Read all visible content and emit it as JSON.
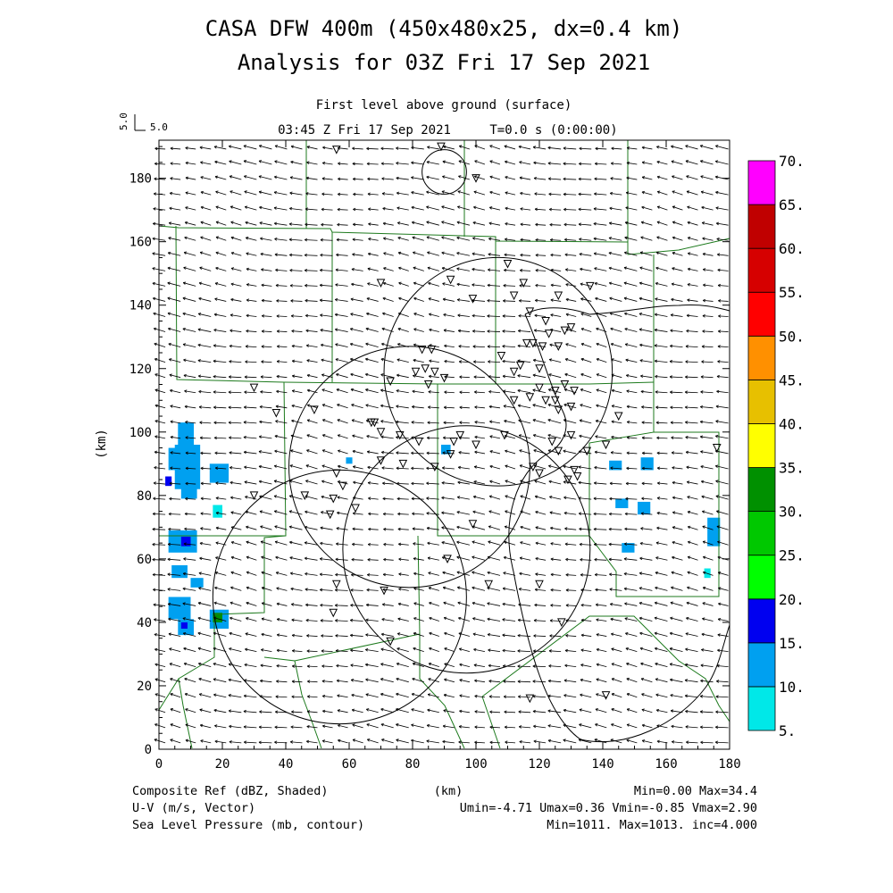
{
  "header": {
    "title_line1": "CASA DFW 400m (450x480x25, dx=0.4 km)",
    "title_line2": "Analysis for 03Z Fri 17 Sep 2021",
    "level": "First level above ground (surface)",
    "time": "03:45 Z Fri 17 Sep 2021",
    "elapsed": "T=0.0 s (0:00:00)",
    "ref_vector_left": "5.0",
    "ref_vector_right": "5.0"
  },
  "footer": {
    "line1_left": "Composite Ref (dBZ, Shaded)",
    "line1_center": "(km)",
    "line1_right": "Min=0.00 Max=34.4",
    "line2_left": "U-V (m/s, Vector)",
    "line2_right": "Umin=-4.71 Umax=0.36 Vmin=-0.85 Vmax=2.90",
    "line3_left": "Sea Level Pressure (mb, contour)",
    "line3_right": "Min=1011. Max=1013. inc=4.000"
  },
  "chart_data": {
    "type": "heatmap",
    "title": "CASA DFW 400m (450x480x25, dx=0.4 km)",
    "subtitle": "Analysis for 03Z Fri 17 Sep 2021",
    "xlabel": "(km)",
    "ylabel": "(km)",
    "xlim": [
      0,
      180
    ],
    "ylim": [
      0,
      192
    ],
    "x_ticks": [
      0,
      20,
      40,
      60,
      80,
      100,
      120,
      140,
      160,
      180
    ],
    "y_ticks": [
      0,
      20,
      40,
      60,
      80,
      100,
      120,
      140,
      160,
      180
    ],
    "colorbar": {
      "label": "Composite Ref (dBZ, Shaded)",
      "levels": [
        "5.",
        "10.",
        "15.",
        "20.",
        "25.",
        "30.",
        "35.",
        "40.",
        "45.",
        "50.",
        "55.",
        "60.",
        "65.",
        "70."
      ],
      "colors": [
        "#00e8e8",
        "#00a0f0",
        "#0000f0",
        "#00ff00",
        "#00c800",
        "#009000",
        "#ffff00",
        "#e7c000",
        "#ff9000",
        "#ff0000",
        "#d60000",
        "#c00000",
        "#ff00ff"
      ]
    },
    "reflectivity_cells": [
      {
        "x": 6,
        "y": 95,
        "w": 5,
        "h": 8,
        "dbz": 12
      },
      {
        "x": 5,
        "y": 82,
        "w": 8,
        "h": 14,
        "dbz": 10
      },
      {
        "x": 3,
        "y": 88,
        "w": 3,
        "h": 7,
        "dbz": 12
      },
      {
        "x": 2,
        "y": 83,
        "w": 2,
        "h": 3,
        "dbz": 16
      },
      {
        "x": 7,
        "y": 79,
        "w": 5,
        "h": 8,
        "dbz": 12
      },
      {
        "x": 16,
        "y": 84,
        "w": 6,
        "h": 6,
        "dbz": 12
      },
      {
        "x": 17,
        "y": 73,
        "w": 3,
        "h": 4,
        "dbz": 8
      },
      {
        "x": 3,
        "y": 62,
        "w": 9,
        "h": 7,
        "dbz": 12
      },
      {
        "x": 7,
        "y": 64,
        "w": 3,
        "h": 3,
        "dbz": 16
      },
      {
        "x": 4,
        "y": 54,
        "w": 5,
        "h": 4,
        "dbz": 10
      },
      {
        "x": 10,
        "y": 51,
        "w": 4,
        "h": 3,
        "dbz": 10
      },
      {
        "x": 3,
        "y": 41,
        "w": 7,
        "h": 7,
        "dbz": 12
      },
      {
        "x": 6,
        "y": 36,
        "w": 5,
        "h": 5,
        "dbz": 14
      },
      {
        "x": 7,
        "y": 38,
        "w": 2,
        "h": 2,
        "dbz": 16
      },
      {
        "x": 16,
        "y": 38,
        "w": 6,
        "h": 6,
        "dbz": 12
      },
      {
        "x": 17,
        "y": 40,
        "w": 3,
        "h": 3,
        "dbz": 30
      },
      {
        "x": 89,
        "y": 93,
        "w": 3,
        "h": 3,
        "dbz": 12
      },
      {
        "x": 59,
        "y": 90,
        "w": 2,
        "h": 2,
        "dbz": 10
      },
      {
        "x": 142,
        "y": 88,
        "w": 4,
        "h": 3,
        "dbz": 12
      },
      {
        "x": 152,
        "y": 88,
        "w": 4,
        "h": 4,
        "dbz": 14
      },
      {
        "x": 144,
        "y": 76,
        "w": 4,
        "h": 3,
        "dbz": 12
      },
      {
        "x": 151,
        "y": 74,
        "w": 4,
        "h": 4,
        "dbz": 14
      },
      {
        "x": 146,
        "y": 62,
        "w": 4,
        "h": 3,
        "dbz": 12
      },
      {
        "x": 173,
        "y": 64,
        "w": 4,
        "h": 9,
        "dbz": 12
      },
      {
        "x": 172,
        "y": 54,
        "w": 2,
        "h": 3,
        "dbz": 8
      }
    ],
    "pressure_contours": [
      {
        "cx": 90,
        "cy": 182,
        "r": 7
      },
      {
        "cx": 107,
        "cy": 119,
        "r": 36
      },
      {
        "cx": 79,
        "cy": 89,
        "r": 38
      },
      {
        "cx": 97,
        "cy": 63,
        "r": 39
      },
      {
        "cx": 57,
        "cy": 48,
        "r": 40
      }
    ],
    "wind_field": {
      "mean_u": -4.0,
      "mean_v": 0.7,
      "reference_vector_ms": 5.0
    }
  }
}
